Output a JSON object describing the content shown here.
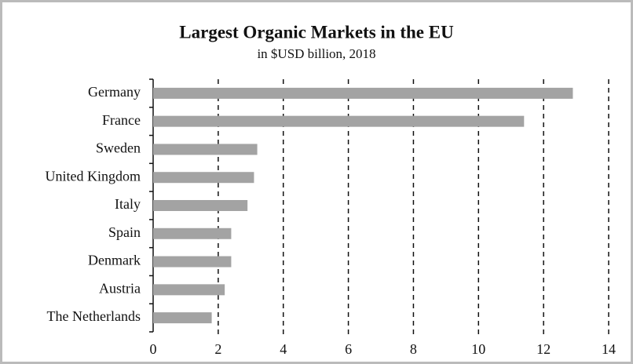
{
  "chart_data": {
    "type": "barh",
    "title": "Largest Organic Markets in the EU",
    "subtitle": "in $USD billion,  2018",
    "categories": [
      "Germany",
      "France",
      "Sweden",
      "United Kingdom",
      "Italy",
      "Spain",
      "Denmark",
      "Austria",
      "The Netherlands"
    ],
    "values": [
      12.9,
      11.4,
      3.2,
      3.1,
      2.9,
      2.4,
      2.4,
      2.2,
      1.8
    ],
    "color": "#a3a3a3",
    "xlim": [
      0,
      14
    ],
    "xticks": [
      0,
      2,
      4,
      6,
      8,
      10,
      12,
      14
    ],
    "grid": true
  }
}
